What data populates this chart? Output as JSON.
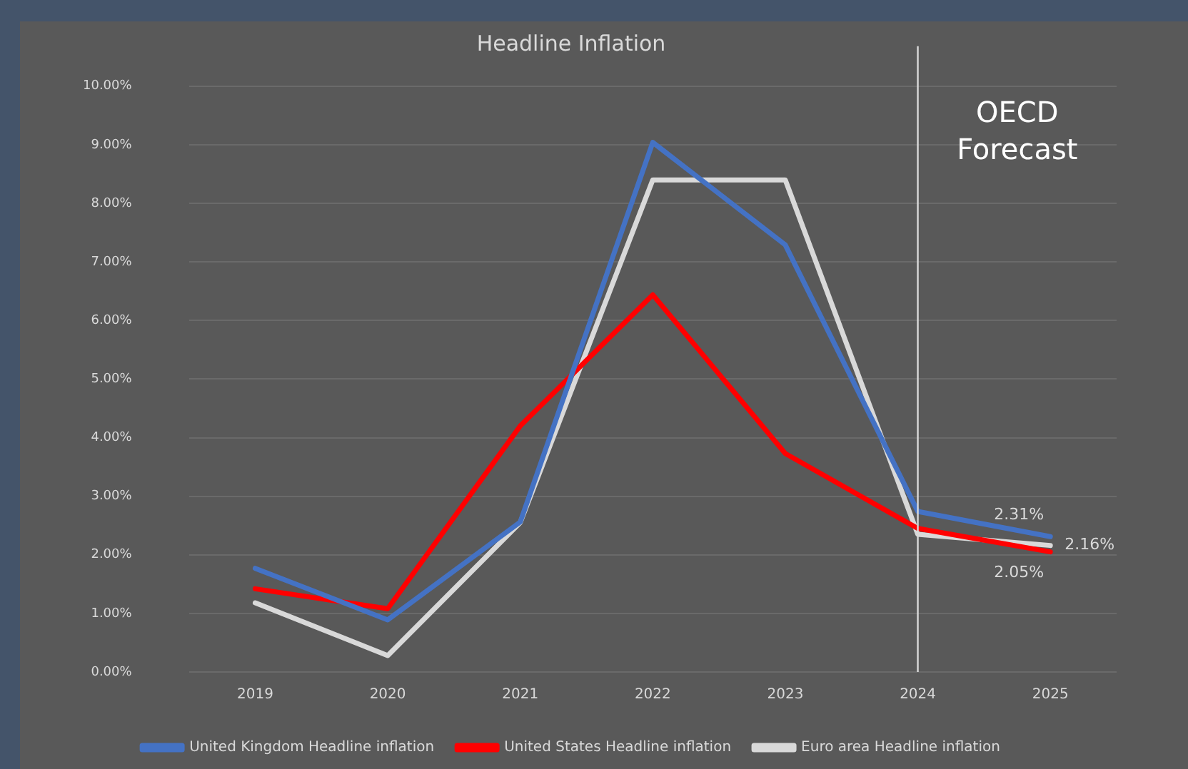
{
  "chart_data": {
    "type": "line",
    "title": "Headline Inflation",
    "categories": [
      "2019",
      "2020",
      "2021",
      "2022",
      "2023",
      "2024",
      "2025"
    ],
    "series": [
      {
        "name": "United Kingdom Headline inflation",
        "color": "#4472c4",
        "values": [
          1.77,
          0.89,
          2.56,
          9.04,
          7.29,
          2.74,
          2.31
        ],
        "value_labels": [
          null,
          null,
          null,
          null,
          null,
          null,
          "2.31%"
        ]
      },
      {
        "name": "United States Headline inflation",
        "color": "#ff0000",
        "values": [
          1.42,
          1.08,
          4.2,
          6.44,
          3.73,
          2.45,
          2.05
        ],
        "value_labels": [
          null,
          null,
          null,
          null,
          null,
          null,
          "2.05%"
        ]
      },
      {
        "name": "Euro area Headline inflation",
        "color": "#d9d9d9",
        "values": [
          1.18,
          0.28,
          2.55,
          8.4,
          8.4,
          2.35,
          2.16
        ],
        "value_labels": [
          null,
          null,
          null,
          null,
          null,
          null,
          "2.16%"
        ]
      }
    ],
    "ylim": [
      0,
      10
    ],
    "yticks": [
      {
        "value": 0,
        "label": "0.00%"
      },
      {
        "value": 1,
        "label": "1.00%"
      },
      {
        "value": 2,
        "label": "2.00%"
      },
      {
        "value": 3,
        "label": "3.00%"
      },
      {
        "value": 4,
        "label": "4.00%"
      },
      {
        "value": 5,
        "label": "5.00%"
      },
      {
        "value": 6,
        "label": "6.00%"
      },
      {
        "value": 7,
        "label": "7.00%"
      },
      {
        "value": 8,
        "label": "8.00%"
      },
      {
        "value": 9,
        "label": "9.00%"
      },
      {
        "value": 10,
        "label": "10.00%"
      }
    ],
    "ref_lines": [
      {
        "axis": "x",
        "value": "2024",
        "color": "#d9d9d9"
      }
    ],
    "annotations": [
      "OECD Forecast"
    ],
    "grid": "y",
    "legend": "bottom",
    "marker": "none",
    "line_style": "solid"
  }
}
